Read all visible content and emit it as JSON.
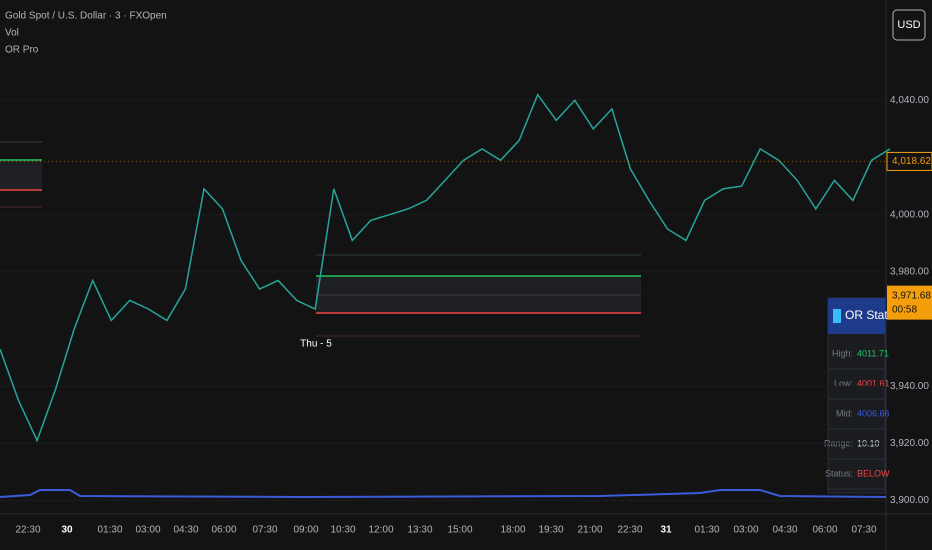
{
  "header": {
    "symbol": "Gold Spot / U.S. Dollar · 3 · FXOpen",
    "indicators": [
      "Vol",
      "OR Pro"
    ],
    "currency": "USD"
  },
  "chart_data": {
    "type": "line",
    "color": "#26a69a",
    "values": [
      3953,
      3935,
      3921,
      3939,
      3960,
      3977,
      3963,
      3970,
      3967,
      3963,
      3974,
      4009,
      4002,
      3984,
      3974,
      3977,
      3970,
      3967,
      4009,
      3991,
      3998,
      4000,
      4002,
      4005,
      4012,
      4019,
      4023,
      4019,
      4026,
      4042,
      4033,
      4040,
      4030,
      4037,
      4016,
      4005,
      3995,
      3991,
      4005,
      4009,
      4010,
      4023,
      4019,
      4012,
      4002,
      4012,
      4005,
      4019,
      4023
    ],
    "ylim": [
      3896,
      4052
    ],
    "yticks": [
      {
        "value": 4040,
        "label": "4,040.00"
      },
      {
        "value": 4000,
        "label": "4,000.00"
      },
      {
        "value": 3980,
        "label": "3,980.00"
      },
      {
        "value": 3940,
        "label": "3,940.00"
      },
      {
        "value": 3920,
        "label": "3,920.00"
      },
      {
        "value": 3900,
        "label": "3,900.00"
      }
    ],
    "xlabels": [
      "22:30",
      "30",
      "01:30",
      "03:00",
      "04:30",
      "06:00",
      "07:30",
      "09:00",
      "10:30",
      "12:00",
      "13:30",
      "15:00",
      "18:00",
      "19:30",
      "21:00",
      "22:30",
      "31",
      "01:30",
      "03:00",
      "04:30",
      "06:00",
      "07:30"
    ],
    "session_label": "Thu - 5",
    "last_price": {
      "value": 4018.62,
      "label": "4,018.62"
    },
    "cursor_price": {
      "value": 3971.68,
      "label": "3,971.68",
      "countdown": "00:58"
    }
  },
  "stats": {
    "title": "OR Stats",
    "rows": [
      [
        "High:",
        "4011.71"
      ],
      [
        "Low:",
        "4001.61"
      ],
      [
        "Mid:",
        "4006.66"
      ],
      [
        "Range:",
        "10.10"
      ],
      [
        "Status:",
        "BELOW"
      ]
    ]
  }
}
